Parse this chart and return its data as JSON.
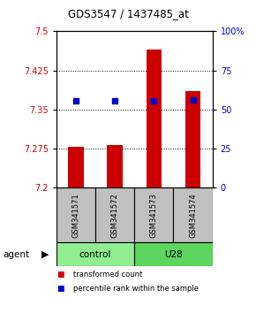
{
  "title": "GDS3547 / 1437485_at",
  "samples": [
    "GSM341571",
    "GSM341572",
    "GSM341573",
    "GSM341574"
  ],
  "bar_values": [
    7.278,
    7.282,
    7.465,
    7.385
  ],
  "bar_base": 7.2,
  "percentile_values": [
    7.366,
    7.367,
    7.366,
    7.368
  ],
  "ylim_left": [
    7.2,
    7.5
  ],
  "ylim_right": [
    0,
    100
  ],
  "yticks_left": [
    7.2,
    7.275,
    7.35,
    7.425,
    7.5
  ],
  "ytick_labels_left": [
    "7.2",
    "7.275",
    "7.35",
    "7.425",
    "7.5"
  ],
  "yticks_right": [
    0,
    25,
    50,
    75,
    100
  ],
  "ytick_labels_right": [
    "0",
    "25",
    "50",
    "75",
    "100%"
  ],
  "hgrid_vals": [
    7.275,
    7.35,
    7.425
  ],
  "groups": [
    {
      "label": "control",
      "samples": [
        0,
        1
      ],
      "color": "#90EE90"
    },
    {
      "label": "U28",
      "samples": [
        2,
        3
      ],
      "color": "#5CD65C"
    }
  ],
  "bar_color": "#CC0000",
  "dot_color": "#0000CC",
  "sample_label_bg": "#C0C0C0",
  "agent_label": "agent",
  "legend_items": [
    {
      "color": "#CC0000",
      "label": "transformed count"
    },
    {
      "color": "#0000CC",
      "label": "percentile rank within the sample"
    }
  ]
}
